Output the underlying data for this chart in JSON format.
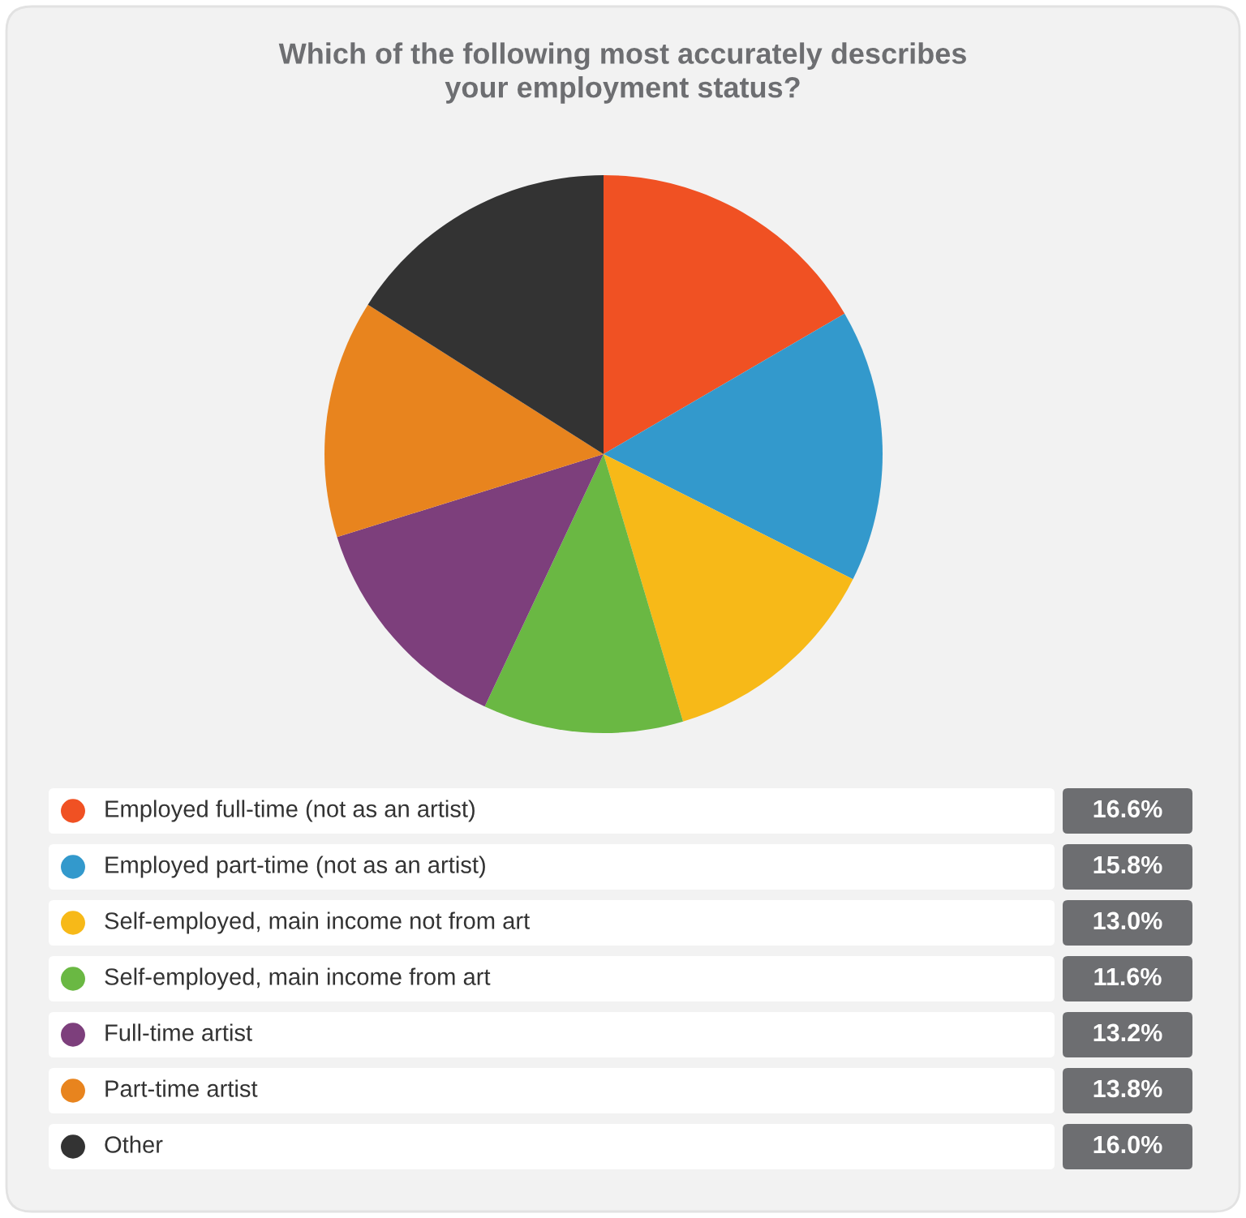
{
  "chart_data": {
    "type": "pie",
    "title": "Which of the following most accurately describes\nyour employment status?",
    "categories": [
      "Employed full-time (not as an artist)",
      "Employed part-time (not as an artist)",
      "Self-employed, main income not from art",
      "Self-employed, main income from art",
      "Full-time artist",
      "Part-time artist",
      "Other"
    ],
    "values": [
      16.6,
      15.8,
      13.0,
      11.6,
      13.2,
      13.8,
      16.0
    ],
    "value_labels": [
      "16.6%",
      "15.8%",
      "13.0%",
      "11.6%",
      "13.2%",
      "13.8%",
      "16.0%"
    ],
    "colors": [
      "#f05123",
      "#3399cc",
      "#f7b918",
      "#6ab843",
      "#7d3f7c",
      "#e8841e",
      "#333333"
    ],
    "legend": "bottom"
  }
}
